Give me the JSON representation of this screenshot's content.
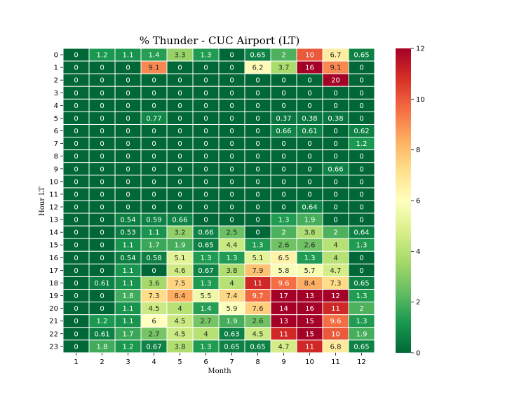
{
  "chart_data": {
    "type": "heatmap",
    "title": "% Thunder - CUC Airport (LT)",
    "xlabel": "Month",
    "ylabel": "Hour LT",
    "x_categories": [
      "1",
      "2",
      "3",
      "4",
      "5",
      "6",
      "7",
      "8",
      "9",
      "10",
      "11",
      "12"
    ],
    "y_categories": [
      "0",
      "1",
      "2",
      "3",
      "4",
      "5",
      "6",
      "7",
      "8",
      "9",
      "10",
      "11",
      "12",
      "13",
      "14",
      "15",
      "16",
      "17",
      "18",
      "19",
      "20",
      "21",
      "22",
      "23"
    ],
    "values": [
      [
        0,
        1.2,
        1.1,
        1.4,
        3.3,
        1.3,
        0,
        0.65,
        2,
        10,
        6.7,
        0.65
      ],
      [
        0,
        0,
        0,
        9.1,
        0,
        0,
        0,
        6.2,
        3.7,
        16,
        9.1,
        0
      ],
      [
        0,
        0,
        0,
        0,
        0,
        0,
        0,
        0,
        0,
        0,
        20,
        0
      ],
      [
        0,
        0,
        0,
        0,
        0,
        0,
        0,
        0,
        0,
        0,
        0,
        0
      ],
      [
        0,
        0,
        0,
        0,
        0,
        0,
        0,
        0,
        0,
        0,
        0,
        0
      ],
      [
        0,
        0,
        0,
        0.77,
        0,
        0,
        0,
        0,
        0.37,
        0.38,
        0.38,
        0
      ],
      [
        0,
        0,
        0,
        0,
        0,
        0,
        0,
        0,
        0.66,
        0.61,
        0,
        0.62
      ],
      [
        0,
        0,
        0,
        0,
        0,
        0,
        0,
        0,
        0,
        0,
        0,
        1.2
      ],
      [
        0,
        0,
        0,
        0,
        0,
        0,
        0,
        0,
        0,
        0,
        0,
        0
      ],
      [
        0,
        0,
        0,
        0,
        0,
        0,
        0,
        0,
        0,
        0,
        0.66,
        0
      ],
      [
        0,
        0,
        0,
        0,
        0,
        0,
        0,
        0,
        0,
        0,
        0,
        0
      ],
      [
        0,
        0,
        0,
        0,
        0,
        0,
        0,
        0,
        0,
        0,
        0,
        0
      ],
      [
        0,
        0,
        0,
        0,
        0,
        0,
        0,
        0,
        0,
        0.64,
        0,
        0
      ],
      [
        0,
        0,
        0.54,
        0.59,
        0.66,
        0,
        0,
        0,
        1.3,
        1.9,
        0,
        0
      ],
      [
        0,
        0,
        0.53,
        1.1,
        3.2,
        0.66,
        2.5,
        0,
        2,
        3.8,
        2,
        0.64
      ],
      [
        0,
        0,
        1.1,
        1.7,
        1.9,
        0.65,
        4.4,
        1.3,
        2.6,
        2.6,
        4,
        1.3
      ],
      [
        0,
        0,
        0.54,
        0.58,
        5.1,
        1.3,
        1.3,
        5.1,
        6.5,
        1.3,
        4,
        0
      ],
      [
        0,
        0,
        1.1,
        0,
        4.6,
        0.67,
        3.8,
        7.9,
        5.8,
        5.7,
        4.7,
        0
      ],
      [
        0,
        0.61,
        1.1,
        3.6,
        7.5,
        1.3,
        4,
        11,
        9.6,
        8.4,
        7.3,
        0.65
      ],
      [
        0,
        0,
        1.8,
        7.3,
        8.4,
        5.5,
        7.4,
        9.7,
        17,
        13,
        12,
        1.3
      ],
      [
        0,
        0,
        1.1,
        4.5,
        4,
        1.4,
        5.9,
        7.6,
        14,
        16,
        11,
        2
      ],
      [
        0,
        1.2,
        1.1,
        6,
        4.5,
        2.7,
        1.9,
        2.6,
        13,
        15,
        9.6,
        1.3
      ],
      [
        0,
        0.61,
        1.7,
        2.7,
        4.5,
        4,
        0.63,
        4.5,
        11,
        15,
        10,
        1.9
      ],
      [
        0,
        1.8,
        1.2,
        0.67,
        3.8,
        1.3,
        0.65,
        0.65,
        4.7,
        11,
        6.8,
        0.65
      ]
    ],
    "colorscale": "RdYlGn_r",
    "vmin": 0,
    "vmax": 12,
    "colorbar_ticks": [
      "0",
      "2",
      "4",
      "6",
      "8",
      "10",
      "12"
    ],
    "colorbar_tick_values": [
      0,
      2,
      4,
      6,
      8,
      10,
      12
    ],
    "grid_lines": "white",
    "annotations": "cell values"
  }
}
